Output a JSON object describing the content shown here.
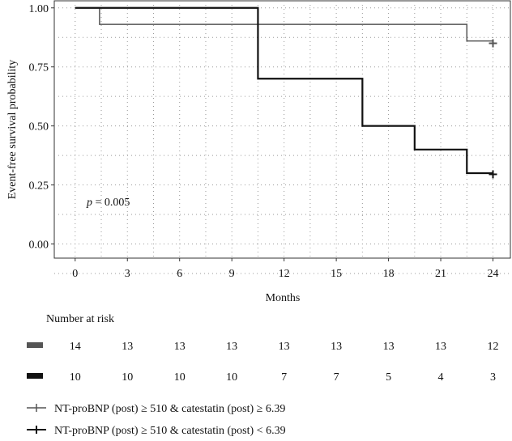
{
  "chart_data": {
    "type": "line",
    "step": true,
    "title": "",
    "xlabel": "Months",
    "ylabel": "Event-free survival probability",
    "xlim": [
      -1.2,
      25
    ],
    "ylim": [
      -0.06,
      1.03
    ],
    "xticks": [
      0,
      3,
      6,
      9,
      12,
      15,
      18,
      21,
      24
    ],
    "xtick_labels": [
      "0",
      "3",
      "6",
      "9",
      "12",
      "15",
      "18",
      "21",
      "24"
    ],
    "yticks": [
      0,
      0.25,
      0.5,
      0.75,
      1
    ],
    "ytick_labels": [
      "0.00",
      "0.25",
      "0.50",
      "0.75",
      "1.00"
    ],
    "grid": true,
    "grid_style": "dotted",
    "annotation": {
      "prefix": "p",
      "text": " = 0.005",
      "x": 0.7,
      "y": 0.1
    },
    "series": [
      {
        "name": "NT-proBNP (post) ≥ 510 & catestatin (post) ≥ 6.39",
        "color": "#555555",
        "x": [
          0,
          1.4,
          22.5,
          24
        ],
        "y": [
          1.0,
          0.93,
          0.86,
          0.86
        ],
        "censor_x": [
          24
        ],
        "censor_y": [
          0.85
        ]
      },
      {
        "name": "NT-proBNP (post) ≥ 510 & catestatin (post) < 6.39",
        "color": "#111111",
        "x": [
          0,
          10.5,
          16.5,
          19.5,
          22.5,
          24
        ],
        "y": [
          1.0,
          0.7,
          0.5,
          0.4,
          0.3,
          0.3
        ],
        "censor_x": [
          24
        ],
        "censor_y": [
          0.295
        ]
      }
    ],
    "risk_table": {
      "title": "Number at risk",
      "rows": [
        {
          "color": "#555555",
          "values": [
            "14",
            "13",
            "13",
            "13",
            "13",
            "13",
            "13",
            "13",
            "12"
          ]
        },
        {
          "color": "#111111",
          "values": [
            "10",
            "10",
            "10",
            "10",
            "7",
            "7",
            "5",
            "4",
            "3"
          ]
        }
      ]
    },
    "legend_position": "bottom"
  }
}
